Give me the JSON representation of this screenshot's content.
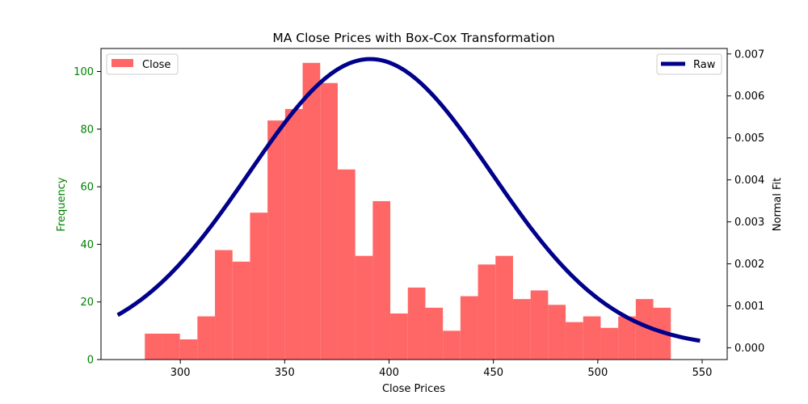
{
  "chart_data": {
    "type": "bar",
    "title": "MA Close Prices with Box-Cox Transformation",
    "xlabel": "Close Prices",
    "ylabel": "Frequency",
    "y2label": "Normal Fit",
    "xlim": [
      262,
      562
    ],
    "ylim": [
      0,
      108
    ],
    "y2lim": [
      -0.00028,
      0.00713
    ],
    "x_ticks": [
      300,
      350,
      400,
      450,
      500,
      550
    ],
    "y_ticks": [
      0,
      20,
      40,
      60,
      80,
      100
    ],
    "y2_ticks": [
      0.0,
      0.001,
      0.002,
      0.003,
      0.004,
      0.005,
      0.006,
      0.007
    ],
    "y2_tick_labels": [
      "0.000",
      "0.001",
      "0.002",
      "0.003",
      "0.004",
      "0.005",
      "0.006",
      "0.007"
    ],
    "legend_left": {
      "label": "Close",
      "color": "#ff6666",
      "placement": "upper-left"
    },
    "legend_right": {
      "label": "Raw",
      "color": "#00008b",
      "placement": "upper-right"
    },
    "histogram": {
      "name": "Close",
      "color": "#ff6666",
      "bin_start": 283,
      "bin_width": 8.4,
      "counts": [
        9,
        9,
        7,
        15,
        38,
        34,
        51,
        83,
        87,
        103,
        96,
        66,
        36,
        55,
        16,
        25,
        18,
        10,
        22,
        33,
        36,
        21,
        24,
        19,
        13,
        15,
        11,
        15,
        21,
        18
      ]
    },
    "normal_fit": {
      "name": "Raw",
      "color": "#00008b",
      "mean": 391,
      "std": 58,
      "x_range": [
        270,
        549
      ]
    },
    "ytick_color": "#008000",
    "ylabel_color": "#008000"
  }
}
